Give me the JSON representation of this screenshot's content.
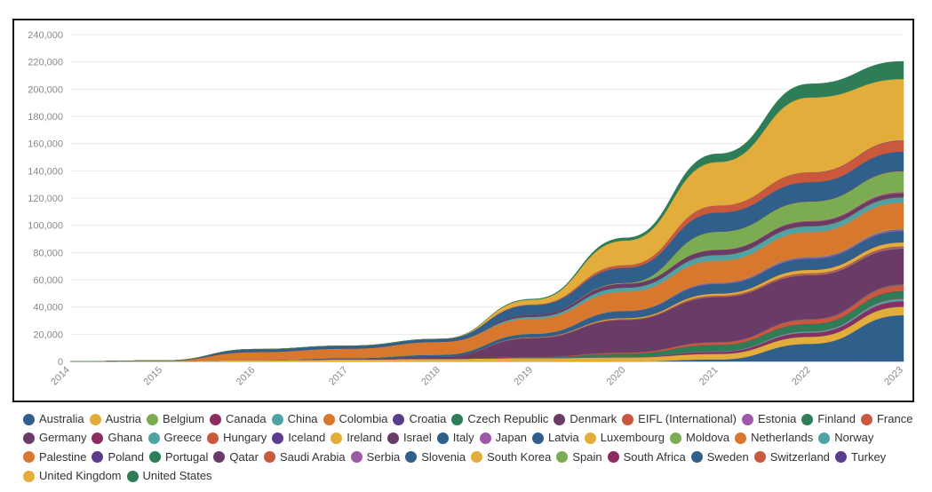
{
  "chart_data": {
    "type": "area",
    "stacked": true,
    "title": "",
    "xlabel": "",
    "ylabel": "",
    "x": [
      2014,
      2015,
      2016,
      2017,
      2018,
      2019,
      2020,
      2021,
      2022,
      2023
    ],
    "ylim": [
      0,
      240000
    ],
    "y_ticks": [
      0,
      20000,
      40000,
      60000,
      80000,
      100000,
      120000,
      140000,
      160000,
      180000,
      200000,
      220000,
      240000
    ],
    "y_tick_labels": [
      "0",
      "20,000",
      "40,000",
      "60,000",
      "80,000",
      "100,000",
      "120,000",
      "140,000",
      "160,000",
      "180,000",
      "200,000",
      "220,000",
      "240,000"
    ],
    "x_tick_labels": [
      "2014",
      "2015",
      "2016",
      "2017",
      "2018",
      "2019",
      "2020",
      "2021",
      "2022",
      "2023"
    ],
    "grid": true,
    "legend_position": "bottom",
    "series": [
      {
        "name": "Australia",
        "color": "#2f5f8a",
        "values": [
          0,
          0,
          0,
          0,
          0,
          0,
          0,
          1500,
          13000,
          34000
        ]
      },
      {
        "name": "Austria",
        "color": "#e3ad3b",
        "values": [
          0,
          300,
          1000,
          1500,
          2000,
          2500,
          3000,
          4000,
          5000,
          6000
        ]
      },
      {
        "name": "Belgium",
        "color": "#7cac52",
        "values": [
          0,
          0,
          0,
          0,
          0,
          0,
          0,
          100,
          200,
          300
        ]
      },
      {
        "name": "Canada",
        "color": "#8a2d62",
        "values": [
          0,
          0,
          0,
          0,
          0,
          0,
          300,
          1500,
          3000,
          4000
        ]
      },
      {
        "name": "China",
        "color": "#4fa3a5",
        "values": [
          0,
          0,
          0,
          0,
          0,
          0,
          0,
          300,
          800,
          1500
        ]
      },
      {
        "name": "Colombia",
        "color": "#d8782f",
        "values": [
          0,
          0,
          0,
          0,
          0,
          0,
          0,
          100,
          200,
          300
        ]
      },
      {
        "name": "Croatia",
        "color": "#5a3d8c",
        "values": [
          0,
          0,
          0,
          0,
          0,
          0,
          0,
          100,
          200,
          300
        ]
      },
      {
        "name": "Czech Republic",
        "color": "#2e7d57",
        "values": [
          0,
          0,
          0,
          0,
          0,
          500,
          2500,
          4500,
          5000,
          5000
        ]
      },
      {
        "name": "Denmark",
        "color": "#6a3b66",
        "values": [
          0,
          0,
          0,
          0,
          0,
          0,
          0,
          100,
          200,
          300
        ]
      },
      {
        "name": "EIFL (International)",
        "color": "#c9583d",
        "values": [
          0,
          0,
          0,
          0,
          0,
          300,
          800,
          1800,
          3000,
          4000
        ]
      },
      {
        "name": "Estonia",
        "color": "#9b59a8",
        "values": [
          0,
          0,
          0,
          0,
          0,
          0,
          0,
          100,
          200,
          300
        ]
      },
      {
        "name": "Finland",
        "color": "#2e7d57",
        "values": [
          0,
          0,
          0,
          0,
          0,
          0,
          0,
          100,
          200,
          300
        ]
      },
      {
        "name": "France",
        "color": "#c9583d",
        "values": [
          0,
          0,
          0,
          0,
          0,
          0,
          0,
          100,
          200,
          300
        ]
      },
      {
        "name": "Germany",
        "color": "#6a3b66",
        "values": [
          0,
          0,
          0,
          500,
          1500,
          14000,
          24000,
          33000,
          32000,
          26000
        ]
      },
      {
        "name": "Ghana",
        "color": "#8a2d62",
        "values": [
          0,
          0,
          0,
          0,
          0,
          0,
          0,
          100,
          200,
          300
        ]
      },
      {
        "name": "Greece",
        "color": "#4fa3a5",
        "values": [
          0,
          0,
          0,
          0,
          0,
          0,
          0,
          100,
          200,
          300
        ]
      },
      {
        "name": "Hungary",
        "color": "#c9583d",
        "values": [
          0,
          0,
          0,
          0,
          0,
          300,
          600,
          800,
          1000,
          1000
        ]
      },
      {
        "name": "Iceland",
        "color": "#5a3d8c",
        "values": [
          0,
          0,
          0,
          0,
          0,
          0,
          0,
          100,
          200,
          300
        ]
      },
      {
        "name": "Ireland",
        "color": "#e3ad3b",
        "values": [
          0,
          0,
          0,
          0,
          0,
          300,
          800,
          1500,
          2500,
          3000
        ]
      },
      {
        "name": "Israel",
        "color": "#6a3b66",
        "values": [
          0,
          0,
          0,
          0,
          0,
          0,
          0,
          100,
          200,
          300
        ]
      },
      {
        "name": "Italy",
        "color": "#2f5f8a",
        "values": [
          0,
          0,
          0,
          500,
          1500,
          2500,
          5000,
          7000,
          8000,
          8000
        ]
      },
      {
        "name": "Japan",
        "color": "#9b59a8",
        "values": [
          0,
          0,
          0,
          0,
          0,
          0,
          300,
          800,
          1000,
          1000
        ]
      },
      {
        "name": "Latvia",
        "color": "#2f5f8a",
        "values": [
          0,
          0,
          0,
          0,
          0,
          0,
          0,
          100,
          200,
          300
        ]
      },
      {
        "name": "Luxembourg",
        "color": "#e3ad3b",
        "values": [
          0,
          0,
          0,
          0,
          0,
          0,
          0,
          100,
          200,
          300
        ]
      },
      {
        "name": "Moldova",
        "color": "#7cac52",
        "values": [
          0,
          0,
          0,
          0,
          0,
          0,
          0,
          100,
          200,
          300
        ]
      },
      {
        "name": "Netherlands",
        "color": "#d8782f",
        "values": [
          0,
          300,
          6000,
          7000,
          9500,
          11000,
          14000,
          16000,
          18000,
          19000
        ]
      },
      {
        "name": "Norway",
        "color": "#4fa3a5",
        "values": [
          0,
          0,
          0,
          0,
          0,
          1500,
          3000,
          4000,
          4000,
          3500
        ]
      },
      {
        "name": "Palestine",
        "color": "#d8782f",
        "values": [
          0,
          0,
          0,
          0,
          0,
          0,
          0,
          100,
          200,
          300
        ]
      },
      {
        "name": "Poland",
        "color": "#5a3d8c",
        "values": [
          0,
          0,
          0,
          0,
          0,
          0,
          0,
          100,
          200,
          300
        ]
      },
      {
        "name": "Portugal",
        "color": "#2e7d57",
        "values": [
          0,
          0,
          0,
          0,
          0,
          0,
          0,
          100,
          200,
          300
        ]
      },
      {
        "name": "Qatar",
        "color": "#6a3b66",
        "values": [
          0,
          0,
          0,
          0,
          0,
          1500,
          3000,
          3500,
          3000,
          2500
        ]
      },
      {
        "name": "Saudi Arabia",
        "color": "#c9583d",
        "values": [
          0,
          0,
          0,
          0,
          0,
          0,
          0,
          100,
          200,
          300
        ]
      },
      {
        "name": "Serbia",
        "color": "#9b59a8",
        "values": [
          0,
          0,
          0,
          0,
          0,
          0,
          0,
          100,
          200,
          300
        ]
      },
      {
        "name": "Slovenia",
        "color": "#2f5f8a",
        "values": [
          0,
          0,
          0,
          0,
          0,
          0,
          0,
          100,
          200,
          300
        ]
      },
      {
        "name": "South Korea",
        "color": "#e3ad3b",
        "values": [
          0,
          0,
          0,
          0,
          0,
          0,
          0,
          100,
          200,
          300
        ]
      },
      {
        "name": "Spain",
        "color": "#7cac52",
        "values": [
          0,
          0,
          0,
          0,
          0,
          0,
          500,
          13000,
          14000,
          15000
        ]
      },
      {
        "name": "South Africa",
        "color": "#8a2d62",
        "values": [
          0,
          0,
          0,
          0,
          0,
          0,
          0,
          100,
          200,
          300
        ]
      },
      {
        "name": "Sweden",
        "color": "#2f5f8a",
        "values": [
          0,
          0,
          2000,
          2000,
          2000,
          7000,
          11000,
          14000,
          14000,
          14000
        ]
      },
      {
        "name": "Switzerland",
        "color": "#c9583d",
        "values": [
          0,
          0,
          0,
          0,
          0,
          500,
          2000,
          5000,
          7000,
          8000
        ]
      },
      {
        "name": "Turkey",
        "color": "#5a3d8c",
        "values": [
          0,
          0,
          0,
          0,
          0,
          0,
          0,
          100,
          200,
          300
        ]
      },
      {
        "name": "United Kingdom",
        "color": "#e3ad3b",
        "values": [
          0,
          0,
          0,
          0,
          0,
          3500,
          18000,
          32000,
          55000,
          45000
        ]
      },
      {
        "name": "United States",
        "color": "#2e7d57",
        "values": [
          0,
          0,
          0,
          0,
          0,
          500,
          2000,
          6000,
          10000,
          13000
        ]
      }
    ]
  }
}
